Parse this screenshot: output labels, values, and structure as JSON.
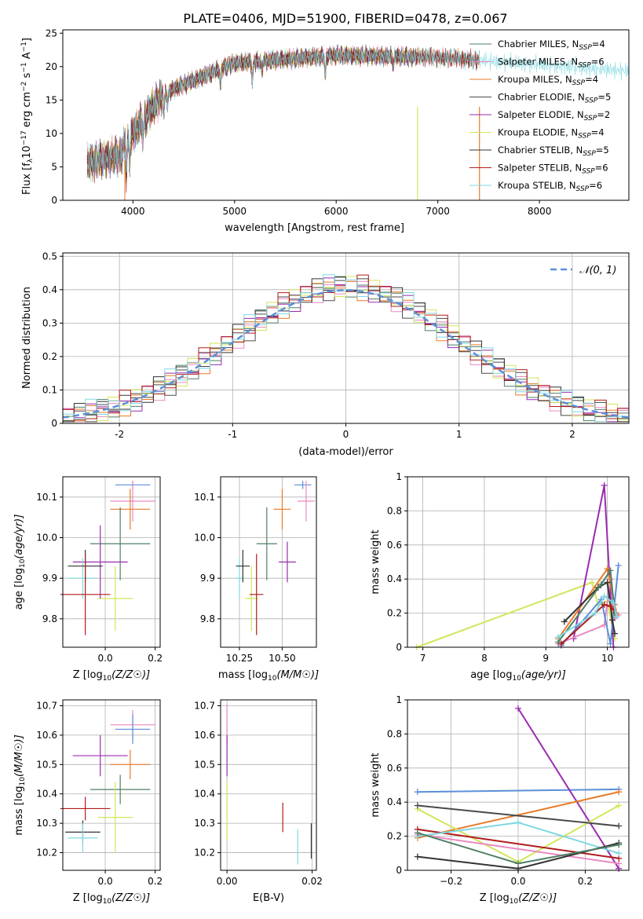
{
  "figure_title": "PLATE=0406, MJD=51900, FIBERID=0478, z=0.067",
  "chart_data": [
    {
      "id": "spectrum",
      "type": "line",
      "xlabel": "wavelength [Angstrom, rest frame]",
      "ylabel_parts": [
        "Flux [f",
        "λ",
        "10",
        "−17",
        " erg cm",
        "−2",
        " s",
        "−1",
        " A",
        "−1",
        "]"
      ],
      "xlim": [
        3310,
        8880
      ],
      "ylim": [
        0,
        25.5
      ],
      "xticks": [
        4000,
        5000,
        6000,
        7000,
        8000
      ],
      "yticks": [
        0,
        5,
        10,
        15,
        20,
        25
      ],
      "grid": false,
      "legend_position": "upper-right",
      "series": [
        {
          "name_main": "Chabrier MILES, N",
          "name_sub": "SSP",
          "name_tail": "=4",
          "color": "#4f7f64",
          "xrange": [
            3550,
            7410
          ]
        },
        {
          "name_main": "Salpeter MILES, N",
          "name_sub": "SSP",
          "name_tail": "=6",
          "color": "#e989c2",
          "xrange": [
            3550,
            7410
          ]
        },
        {
          "name_main": "Kroupa MILES, N",
          "name_sub": "SSP",
          "name_tail": "=4",
          "color": "#e87a27",
          "xrange": [
            3550,
            7410
          ]
        },
        {
          "name_main": "Chabrier ELODIE, N",
          "name_sub": "SSP",
          "name_tail": "=5",
          "color": "#4a4a4a",
          "xrange": [
            3550,
            6800
          ]
        },
        {
          "name_main": "Salpeter ELODIE, N",
          "name_sub": "SSP",
          "name_tail": "=2",
          "color": "#9a2bb0",
          "xrange": [
            3550,
            6800
          ]
        },
        {
          "name_main": "Kroupa ELODIE, N",
          "name_sub": "SSP",
          "name_tail": "=4",
          "color": "#d2e65a",
          "xrange": [
            3550,
            6800
          ]
        },
        {
          "name_main": "Chabrier STELIB, N",
          "name_sub": "SSP",
          "name_tail": "=5",
          "color": "#333333",
          "xrange": [
            3550,
            7410
          ]
        },
        {
          "name_main": "Salpeter STELIB, N",
          "name_sub": "SSP",
          "name_tail": "=6",
          "color": "#b01b1b",
          "xrange": [
            3550,
            7410
          ]
        },
        {
          "name_main": "Kroupa STELIB, N",
          "name_sub": "SSP",
          "name_tail": "=6",
          "color": "#7fd8e0",
          "xrange": [
            3550,
            8880
          ]
        }
      ]
    },
    {
      "id": "residuals",
      "type": "bar",
      "xlabel": "(data-model)/error",
      "ylabel": "Normed distribution",
      "xlim": [
        -2.5,
        2.5
      ],
      "ylim": [
        0,
        0.51
      ],
      "xticks": [
        -2,
        -1,
        0,
        1,
        2
      ],
      "yticks": [
        0.0,
        0.1,
        0.2,
        0.3,
        0.4,
        0.5
      ],
      "grid": true,
      "legend_position": "upper-right",
      "reference_curve": {
        "name": "𝒩(0, 1)",
        "color": "#5b8fd9",
        "style": "dashed"
      },
      "bin_edges_range": [
        -2.5,
        2.5
      ],
      "bin_count": 50,
      "histogram_colors": [
        "#4f7f64",
        "#e989c2",
        "#e87a27",
        "#4a4a4a",
        "#9a2bb0",
        "#d2e65a",
        "#333333",
        "#b01b1b",
        "#7fd8e0"
      ]
    },
    {
      "id": "age_vs_Z",
      "type": "scatter",
      "xlabel_main": "Z [log",
      "xlabel_sub": "10",
      "xlabel_tail": "(Z/Z☉)]",
      "ylabel_main": "age  [log",
      "ylabel_sub": "10",
      "ylabel_tail": "(age/yr)]",
      "xlim": [
        -0.17,
        0.22
      ],
      "ylim": [
        9.73,
        10.15
      ],
      "xticks": [
        0.0,
        0.2
      ],
      "xticklabels": [
        "0.0",
        "0.2"
      ],
      "yticks": [
        9.8,
        9.9,
        10.0,
        10.1
      ],
      "yticklabels": [
        "9.8",
        "9.9",
        "10.0",
        "10.1"
      ],
      "grid": true,
      "points": [
        {
          "x": 0.11,
          "y": 10.13,
          "xerr": 0.07,
          "yerr": 0.01,
          "color": "#5b8fd9"
        },
        {
          "x": 0.11,
          "y": 10.09,
          "xerr": 0.09,
          "yerr": 0.05,
          "color": "#e989c2"
        },
        {
          "x": 0.1,
          "y": 10.07,
          "xerr": 0.08,
          "yerr": 0.05,
          "color": "#e87a27"
        },
        {
          "x": 0.06,
          "y": 9.985,
          "xerr": 0.12,
          "yerr": 0.09,
          "color": "#4f7f64"
        },
        {
          "x": 0.04,
          "y": 9.85,
          "xerr": 0.07,
          "yerr": 0.08,
          "color": "#d2e65a"
        },
        {
          "x": -0.02,
          "y": 9.94,
          "xerr": 0.11,
          "yerr": 0.09,
          "color": "#9a2bb0"
        },
        {
          "x": -0.09,
          "y": 9.9,
          "xerr": 0.06,
          "yerr": 0.05,
          "color": "#7fd8e0"
        },
        {
          "x": -0.08,
          "y": 9.93,
          "xerr": 0.07,
          "yerr": 0.04,
          "color": "#333333"
        },
        {
          "x": -0.08,
          "y": 9.86,
          "xerr": 0.1,
          "yerr": 0.1,
          "color": "#b01b1b"
        }
      ]
    },
    {
      "id": "age_vs_mass",
      "type": "scatter",
      "xlabel_main": "mass [log",
      "xlabel_sub": "10",
      "xlabel_tail": "(M/M☉)]",
      "ylabel_main": "",
      "ylabel_sub": "",
      "ylabel_tail": "",
      "xlim": [
        10.14,
        10.7
      ],
      "ylim": [
        9.73,
        10.15
      ],
      "xticks": [
        10.25,
        10.5
      ],
      "xticklabels": [
        "10.25",
        "10.50"
      ],
      "yticks": [
        9.8,
        9.9,
        10.0,
        10.1
      ],
      "yticklabels": [
        "9.8",
        "9.9",
        "10.0",
        "10.1"
      ],
      "grid": true,
      "points": [
        {
          "x": 10.62,
          "y": 10.13,
          "xerr": 0.05,
          "yerr": 0.01,
          "color": "#5b8fd9"
        },
        {
          "x": 10.64,
          "y": 10.09,
          "xerr": 0.05,
          "yerr": 0.05,
          "color": "#e989c2"
        },
        {
          "x": 10.5,
          "y": 10.07,
          "xerr": 0.05,
          "yerr": 0.05,
          "color": "#e87a27"
        },
        {
          "x": 10.41,
          "y": 9.985,
          "xerr": 0.06,
          "yerr": 0.09,
          "color": "#4f7f64"
        },
        {
          "x": 10.32,
          "y": 9.85,
          "xerr": 0.04,
          "yerr": 0.08,
          "color": "#d2e65a"
        },
        {
          "x": 10.53,
          "y": 9.94,
          "xerr": 0.05,
          "yerr": 0.05,
          "color": "#9a2bb0"
        },
        {
          "x": 10.25,
          "y": 9.9,
          "xerr": 0.02,
          "yerr": 0.05,
          "color": "#7fd8e0"
        },
        {
          "x": 10.27,
          "y": 9.93,
          "xerr": 0.04,
          "yerr": 0.04,
          "color": "#333333"
        },
        {
          "x": 10.35,
          "y": 9.86,
          "xerr": 0.04,
          "yerr": 0.1,
          "color": "#b01b1b"
        }
      ]
    },
    {
      "id": "massweight_vs_age",
      "type": "line",
      "xlabel_main": "age  [log",
      "xlabel_sub": "10",
      "xlabel_tail": "(age/yr)]",
      "ylabel": "mass weight",
      "xlim": [
        6.75,
        10.35
      ],
      "ylim": [
        0,
        1.0
      ],
      "xticks": [
        7,
        8,
        9,
        10
      ],
      "yticks": [
        0.0,
        0.2,
        0.4,
        0.6,
        0.8,
        1.0
      ],
      "grid": true,
      "series": [
        {
          "color": "#d2e65a",
          "points": [
            [
              6.9,
              0.0
            ],
            [
              9.75,
              0.38
            ],
            [
              9.85,
              0.25
            ],
            [
              10.0,
              0.27
            ],
            [
              10.12,
              0.05
            ]
          ]
        },
        {
          "color": "#9a2bb0",
          "points": [
            [
              9.45,
              0.05
            ],
            [
              9.95,
              0.95
            ],
            [
              10.1,
              0.0
            ]
          ]
        },
        {
          "color": "#e989c2",
          "points": [
            [
              9.2,
              0.02
            ],
            [
              9.95,
              0.13
            ],
            [
              10.05,
              0.4
            ],
            [
              10.12,
              0.17
            ],
            [
              10.18,
              0.19
            ]
          ]
        },
        {
          "color": "#e87a27",
          "points": [
            [
              9.2,
              0.05
            ],
            [
              10.0,
              0.46
            ],
            [
              10.12,
              0.25
            ],
            [
              10.15,
              0.19
            ]
          ]
        },
        {
          "color": "#5b8fd9",
          "points": [
            [
              9.25,
              0.01
            ],
            [
              9.9,
              0.28
            ],
            [
              10.05,
              0.02
            ],
            [
              10.18,
              0.48
            ]
          ]
        },
        {
          "color": "#333333",
          "points": [
            [
              9.3,
              0.15
            ],
            [
              9.85,
              0.35
            ],
            [
              10.0,
              0.38
            ],
            [
              10.08,
              0.16
            ],
            [
              10.12,
              0.08
            ]
          ]
        },
        {
          "color": "#4f7f64",
          "points": [
            [
              9.2,
              0.03
            ],
            [
              9.9,
              0.37
            ],
            [
              10.05,
              0.45
            ],
            [
              10.12,
              0.2
            ]
          ]
        },
        {
          "color": "#b01b1b",
          "points": [
            [
              9.25,
              0.02
            ],
            [
              9.95,
              0.25
            ],
            [
              10.05,
              0.24
            ],
            [
              10.1,
              0.22
            ]
          ]
        },
        {
          "color": "#7fd8e0",
          "points": [
            [
              9.2,
              0.06
            ],
            [
              9.8,
              0.2
            ],
            [
              9.95,
              0.3
            ],
            [
              10.1,
              0.26
            ],
            [
              10.15,
              0.18
            ]
          ]
        }
      ]
    },
    {
      "id": "mass_vs_Z",
      "type": "scatter",
      "xlabel_main": "Z [log",
      "xlabel_sub": "10",
      "xlabel_tail": "(Z/Z☉)]",
      "ylabel_main": "mass [log",
      "ylabel_sub": "10",
      "ylabel_tail": "(M/M☉)]",
      "xlim": [
        -0.17,
        0.22
      ],
      "ylim": [
        10.14,
        10.72
      ],
      "xticks": [
        0.0,
        0.2
      ],
      "xticklabels": [
        "0.0",
        "0.2"
      ],
      "yticks": [
        10.2,
        10.3,
        10.4,
        10.5,
        10.6,
        10.7
      ],
      "yticklabels": [
        "10.2",
        "10.3",
        "10.4",
        "10.5",
        "10.6",
        "10.7"
      ],
      "grid": true,
      "points": [
        {
          "x": 0.11,
          "y": 10.635,
          "xerr": 0.09,
          "yerr": 0.05,
          "color": "#e989c2"
        },
        {
          "x": 0.11,
          "y": 10.62,
          "xerr": 0.07,
          "yerr": 0.05,
          "color": "#5b8fd9"
        },
        {
          "x": -0.02,
          "y": 10.53,
          "xerr": 0.11,
          "yerr": 0.07,
          "color": "#9a2bb0"
        },
        {
          "x": 0.1,
          "y": 10.5,
          "xerr": 0.08,
          "yerr": 0.05,
          "color": "#e87a27"
        },
        {
          "x": 0.06,
          "y": 10.415,
          "xerr": 0.12,
          "yerr": 0.05,
          "color": "#4f7f64"
        },
        {
          "x": -0.08,
          "y": 10.35,
          "xerr": 0.1,
          "yerr": 0.04,
          "color": "#b01b1b"
        },
        {
          "x": 0.04,
          "y": 10.32,
          "xerr": 0.07,
          "yerr": 0.12,
          "color": "#d2e65a"
        },
        {
          "x": -0.09,
          "y": 10.27,
          "xerr": 0.07,
          "yerr": 0.04,
          "color": "#333333"
        },
        {
          "x": -0.09,
          "y": 10.25,
          "xerr": 0.06,
          "yerr": 0.05,
          "color": "#7fd8e0"
        }
      ]
    },
    {
      "id": "mass_vs_ebv",
      "type": "scatter",
      "xlabel": "E(B-V)",
      "xlim": [
        -0.0015,
        0.021
      ],
      "ylim": [
        10.14,
        10.72
      ],
      "xticks": [
        0.0,
        0.02
      ],
      "xticklabels": [
        "0.00",
        "0.02"
      ],
      "yticks": [
        10.2,
        10.3,
        10.4,
        10.5,
        10.6,
        10.7
      ],
      "yticklabels": [
        "10.2",
        "10.3",
        "10.4",
        "10.5",
        "10.6",
        "10.7"
      ],
      "grid": true,
      "points": [
        {
          "x": 0.0,
          "y": 10.635,
          "xerr": 0,
          "yerr": 0.07,
          "color": "#e989c2"
        },
        {
          "x": 0.0,
          "y": 10.53,
          "xerr": 0,
          "yerr": 0.07,
          "color": "#9a2bb0"
        },
        {
          "x": 0.0,
          "y": 10.34,
          "xerr": 0,
          "yerr": 0.1,
          "color": "#d2e65a"
        },
        {
          "x": 0.0131,
          "y": 10.32,
          "xerr": 0,
          "yerr": 0.05,
          "color": "#b01b1b"
        },
        {
          "x": 0.0166,
          "y": 10.22,
          "xerr": 0,
          "yerr": 0.06,
          "color": "#7fd8e0"
        },
        {
          "x": 0.0198,
          "y": 10.24,
          "xerr": 0,
          "yerr": 0.06,
          "color": "#333333"
        }
      ]
    },
    {
      "id": "massweight_vs_Z",
      "type": "line",
      "xlabel_main": "Z [log",
      "xlabel_sub": "10",
      "xlabel_tail": "(Z/Z☉)]",
      "ylabel": "mass weight",
      "xlim": [
        -0.33,
        0.33
      ],
      "ylim": [
        0,
        1.0
      ],
      "xticks": [
        -0.2,
        0.0,
        0.2
      ],
      "xticklabels": [
        "−0.2",
        "0.0",
        "0.2"
      ],
      "yticks": [
        0.0,
        0.2,
        0.4,
        0.6,
        0.8,
        1.0
      ],
      "grid": true,
      "series": [
        {
          "color": "#5b8fd9",
          "points": [
            [
              -0.3,
              0.46
            ],
            [
              0.3,
              0.475
            ]
          ]
        },
        {
          "color": "#9a2bb0",
          "points": [
            [
              0.0,
              0.95
            ],
            [
              0.3,
              0.01
            ]
          ]
        },
        {
          "color": "#e87a27",
          "points": [
            [
              -0.3,
              0.19
            ],
            [
              0.3,
              0.46
            ]
          ]
        },
        {
          "color": "#d2e65a",
          "points": [
            [
              -0.3,
              0.36
            ],
            [
              0.0,
              0.05
            ],
            [
              0.3,
              0.38
            ]
          ]
        },
        {
          "color": "#e989c2",
          "points": [
            [
              -0.3,
              0.21
            ],
            [
              0.3,
              0.04
            ]
          ]
        },
        {
          "color": "#b01b1b",
          "points": [
            [
              -0.3,
              0.24
            ],
            [
              0.3,
              0.07
            ]
          ]
        },
        {
          "color": "#7fd8e0",
          "points": [
            [
              -0.3,
              0.2
            ],
            [
              0.0,
              0.28
            ],
            [
              0.3,
              0.1
            ]
          ]
        },
        {
          "color": "#4a4a4a",
          "points": [
            [
              -0.3,
              0.38
            ],
            [
              0.3,
              0.26
            ]
          ]
        },
        {
          "color": "#333333",
          "points": [
            [
              -0.3,
              0.08
            ],
            [
              0.0,
              0.01
            ],
            [
              0.3,
              0.16
            ]
          ]
        },
        {
          "color": "#4f7f64",
          "points": [
            [
              -0.3,
              0.22
            ],
            [
              0.0,
              0.04
            ],
            [
              0.3,
              0.15
            ]
          ]
        }
      ]
    }
  ]
}
